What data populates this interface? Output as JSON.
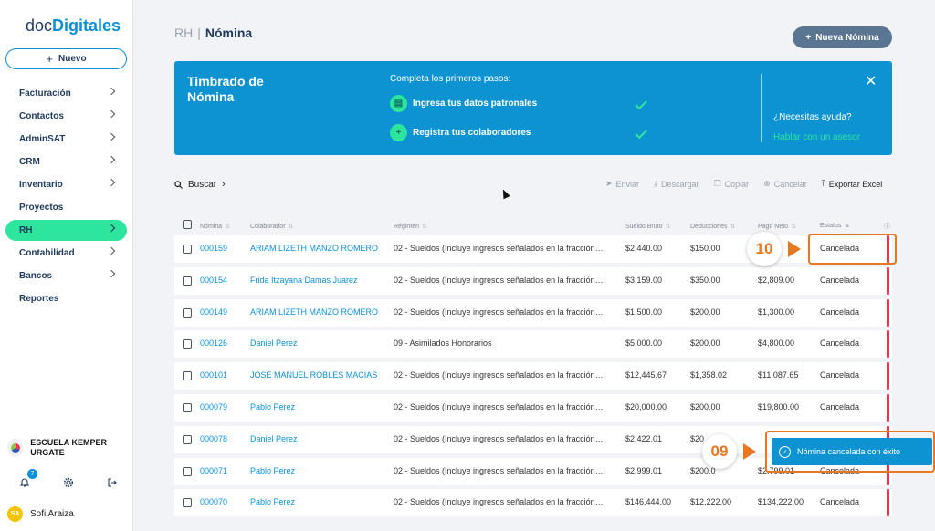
{
  "logo": {
    "part1": "doc",
    "part2": "Digitales"
  },
  "sidebar": {
    "new_label": "Nuevo",
    "items": [
      {
        "label": "Facturación",
        "chevron": true,
        "active": false
      },
      {
        "label": "Contactos",
        "chevron": true,
        "active": false
      },
      {
        "label": "AdminSAT",
        "chevron": true,
        "active": false
      },
      {
        "label": "CRM",
        "chevron": true,
        "active": false
      },
      {
        "label": "Inventario",
        "chevron": true,
        "active": false
      },
      {
        "label": "Proyectos",
        "chevron": false,
        "active": false
      },
      {
        "label": "RH",
        "chevron": true,
        "active": true
      },
      {
        "label": "Contabilidad",
        "chevron": true,
        "active": false
      },
      {
        "label": "Bancos",
        "chevron": true,
        "active": false
      },
      {
        "label": "Reportes",
        "chevron": false,
        "active": false
      }
    ],
    "org_name": "ESCUELA KEMPER URGATE",
    "notifications_count": "7",
    "user_initials": "SA",
    "user_name": "Sofi Araiza"
  },
  "header": {
    "section": "RH",
    "separator": "|",
    "page": "Nómina",
    "new_button": "Nueva Nómina"
  },
  "banner": {
    "title": "Timbrado de Nómina",
    "subtitle": "Completa los primeros pasos:",
    "step1": "Ingresa tus datos patronales",
    "step2": "Registra tus colaboradores",
    "help_question": "¿Necesitas ayuda?",
    "help_link": "Hablar con un asesor"
  },
  "toolbar": {
    "search": "Buscar",
    "enviar": "Enviar",
    "descargar": "Descargar",
    "copiar": "Copiar",
    "cancelar": "Cancelar",
    "exportar": "Exportar Excel"
  },
  "table": {
    "headers": [
      "Nómina",
      "Colaborador",
      "Régimen",
      "Sueldo Bruto",
      "Deducciones",
      "Pago Neto",
      "Estatus"
    ],
    "rows": [
      {
        "nomina": "000159",
        "colaborador": "ARIAM LIZETH MANZO ROMERO",
        "colab_link": true,
        "regimen": "02 - Sueldos (Incluye ingresos señalados en la fracción…",
        "bruto": "$2,440.00",
        "deducciones": "$150.00",
        "neto": "",
        "estatus": "Cancelada"
      },
      {
        "nomina": "000154",
        "colaborador": "Frida Itzayana Damas Juarez",
        "colab_link": true,
        "regimen": "02 - Sueldos (Incluye ingresos señalados en la fracción…",
        "bruto": "$3,159.00",
        "deducciones": "$350.00",
        "neto": "$2,809.00",
        "estatus": "Cancelada"
      },
      {
        "nomina": "000149",
        "colaborador": "ARIAM LIZETH MANZO ROMERO",
        "colab_link": true,
        "regimen": "02 - Sueldos (Incluye ingresos señalados en la fracción…",
        "bruto": "$1,500.00",
        "deducciones": "$200.00",
        "neto": "$1,300.00",
        "estatus": "Cancelada"
      },
      {
        "nomina": "000126",
        "colaborador": "Daniel Perez",
        "colab_link": true,
        "regimen": "09 - Asimilados Honorarios",
        "bruto": "$5,000.00",
        "deducciones": "$200.00",
        "neto": "$4,800.00",
        "estatus": "Cancelada"
      },
      {
        "nomina": "000101",
        "colaborador": "JOSE MANUEL ROBLES MACIAS",
        "colab_link": true,
        "regimen": "02 - Sueldos (Incluye ingresos señalados en la fracción…",
        "bruto": "$12,445.67",
        "deducciones": "$1,358.02",
        "neto": "$11,087.65",
        "estatus": "Cancelada"
      },
      {
        "nomina": "000079",
        "colaborador": "Pablo Perez",
        "colab_link": true,
        "regimen": "02 - Sueldos (Incluye ingresos señalados en la fracción…",
        "bruto": "$20,000.00",
        "deducciones": "$200.00",
        "neto": "$19,800.00",
        "estatus": "Cancelada"
      },
      {
        "nomina": "000078",
        "colaborador": "Daniel Perez",
        "colab_link": true,
        "regimen": "02 - Sueldos (Incluye ingresos señalados en la fracción…",
        "bruto": "$2,422.01",
        "deducciones": "$20",
        "neto": "",
        "estatus": ""
      },
      {
        "nomina": "000071",
        "colaborador": "Pablo Perez",
        "colab_link": true,
        "regimen": "02 - Sueldos (Incluye ingresos señalados en la fracción…",
        "bruto": "$2,999.01",
        "deducciones": "$200.0",
        "neto": "$2,799.01",
        "estatus": "Cancelada"
      },
      {
        "nomina": "000070",
        "colaborador": "Pablo Perez",
        "colab_link": true,
        "regimen": "02 - Sueldos (Incluye ingresos señalados en la fracción…",
        "bruto": "$146,444.00",
        "deducciones": "$12,222.00",
        "neto": "$134,222.00",
        "estatus": "Cancelada"
      }
    ]
  },
  "callouts": {
    "step10": "10",
    "step09": "09"
  },
  "toast": {
    "message": "Nómina cancelada con éxito"
  },
  "colors": {
    "brand_blue": "#0d93d1",
    "accent_green": "#2ee59d",
    "cancel_red": "#e53950",
    "callout_orange": "#e87722"
  }
}
